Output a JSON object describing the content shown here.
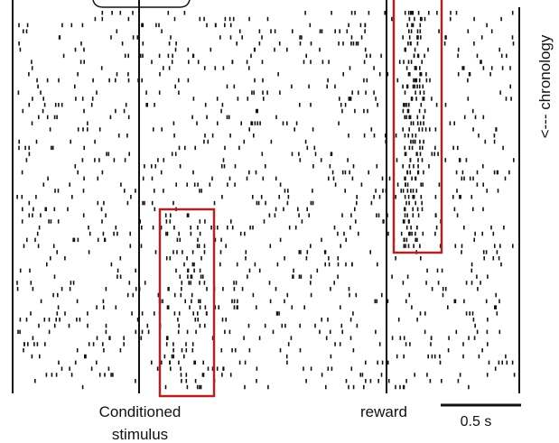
{
  "figure": {
    "stimulus_label": [
      "Conditioned",
      "stimulus"
    ],
    "reward_label": "reward",
    "scale_bar_label": "0.5 s",
    "chronology_label": "<--- chronology"
  }
}
